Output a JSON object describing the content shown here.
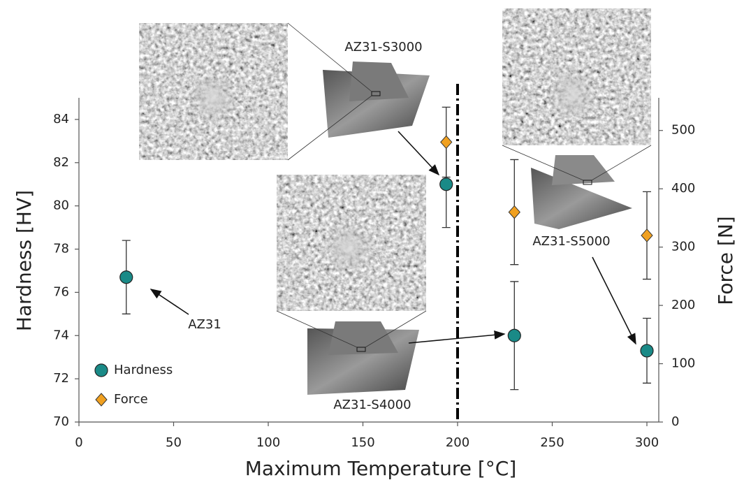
{
  "chart_data": {
    "type": "scatter",
    "xlabel": "Maximum Temperature [°C]",
    "ylabel": "Hardness [HV]",
    "y2label": "Force [N]",
    "xlim": [
      0,
      300
    ],
    "xticks": [
      0,
      50,
      100,
      150,
      200,
      250,
      300
    ],
    "ylim": [
      70,
      85
    ],
    "yticks": [
      70,
      72,
      74,
      76,
      78,
      80,
      82,
      84
    ],
    "y2lim": [
      0,
      556
    ],
    "y2ticks": [
      0,
      100,
      200,
      300,
      400,
      500
    ],
    "vline": 200,
    "legend": "lower left",
    "series": [
      {
        "name": "Hardness",
        "color": "#1a8a87",
        "marker": "circle",
        "x": [
          25,
          194,
          230,
          300
        ],
        "values": [
          76.7,
          81,
          74,
          73.3
        ],
        "errors": [
          1.7,
          2,
          2.5,
          1.5
        ]
      },
      {
        "name": "Force",
        "color": "#f0a020",
        "marker": "diamond",
        "axis": "y2",
        "x": [
          194,
          230,
          300
        ],
        "values": [
          480,
          360,
          320
        ],
        "errors": [
          60,
          90,
          75
        ]
      }
    ],
    "annotations": [
      "AZ31",
      "AZ31-S3000",
      "AZ31-S4000",
      "AZ31-S5000"
    ]
  }
}
